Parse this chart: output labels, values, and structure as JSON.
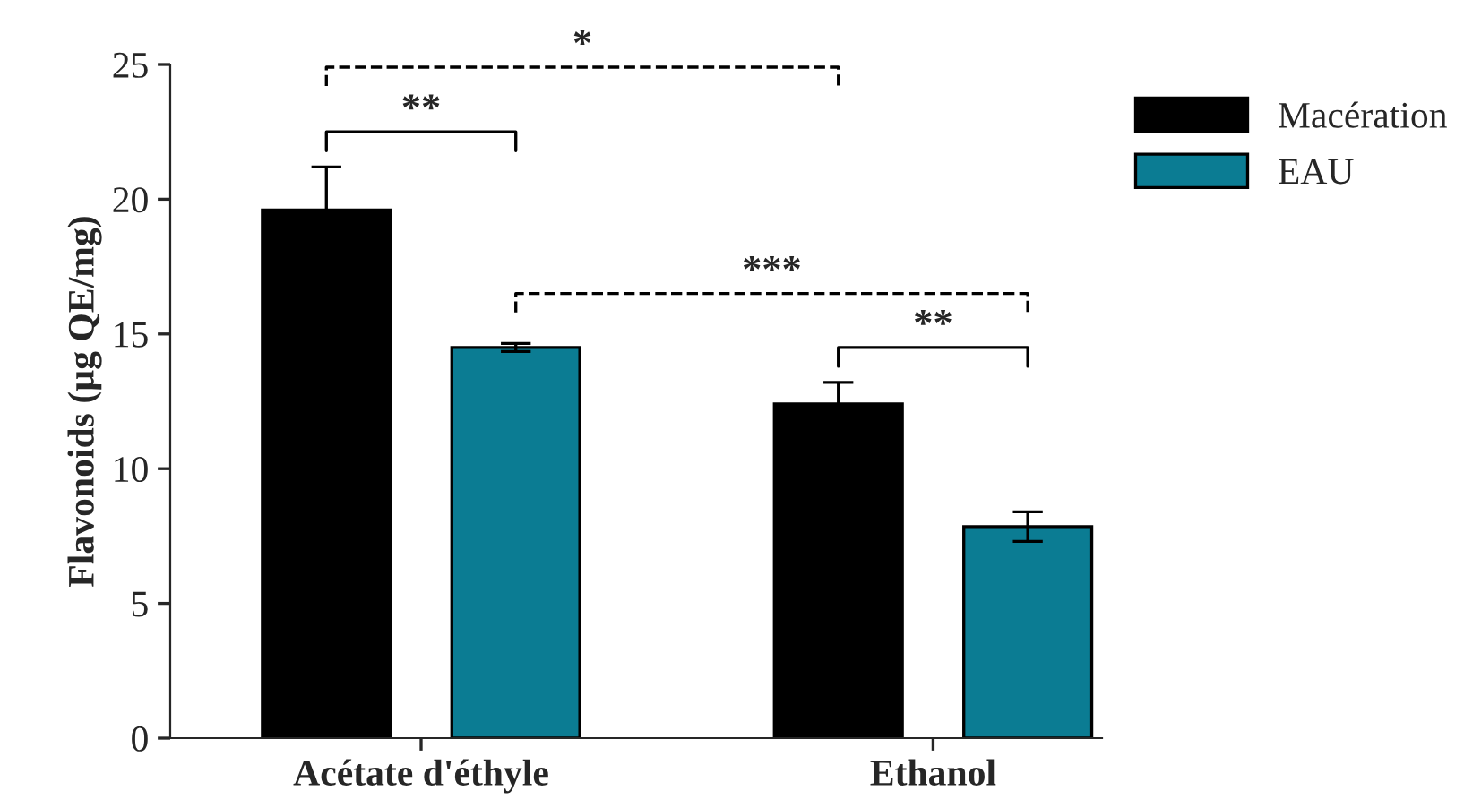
{
  "chart_data": {
    "type": "bar",
    "ylabel": "Flavonoids (µg QE/mg)",
    "categories": [
      "Acétate d'éthyle",
      "Ethanol"
    ],
    "series": [
      {
        "name": "Macération",
        "color": "#000000",
        "values": [
          19.6,
          12.4
        ],
        "errors": [
          1.6,
          0.8
        ]
      },
      {
        "name": "EAU",
        "color": "#0b7c93",
        "values": [
          14.5,
          7.85
        ],
        "errors": [
          0.15,
          0.55
        ]
      }
    ],
    "ylim": [
      0,
      25
    ],
    "yticks": [
      0,
      5,
      10,
      15,
      20,
      25
    ],
    "grid": false,
    "legend": "top right",
    "annotations": [
      "*",
      "**",
      "***",
      "**"
    ]
  }
}
